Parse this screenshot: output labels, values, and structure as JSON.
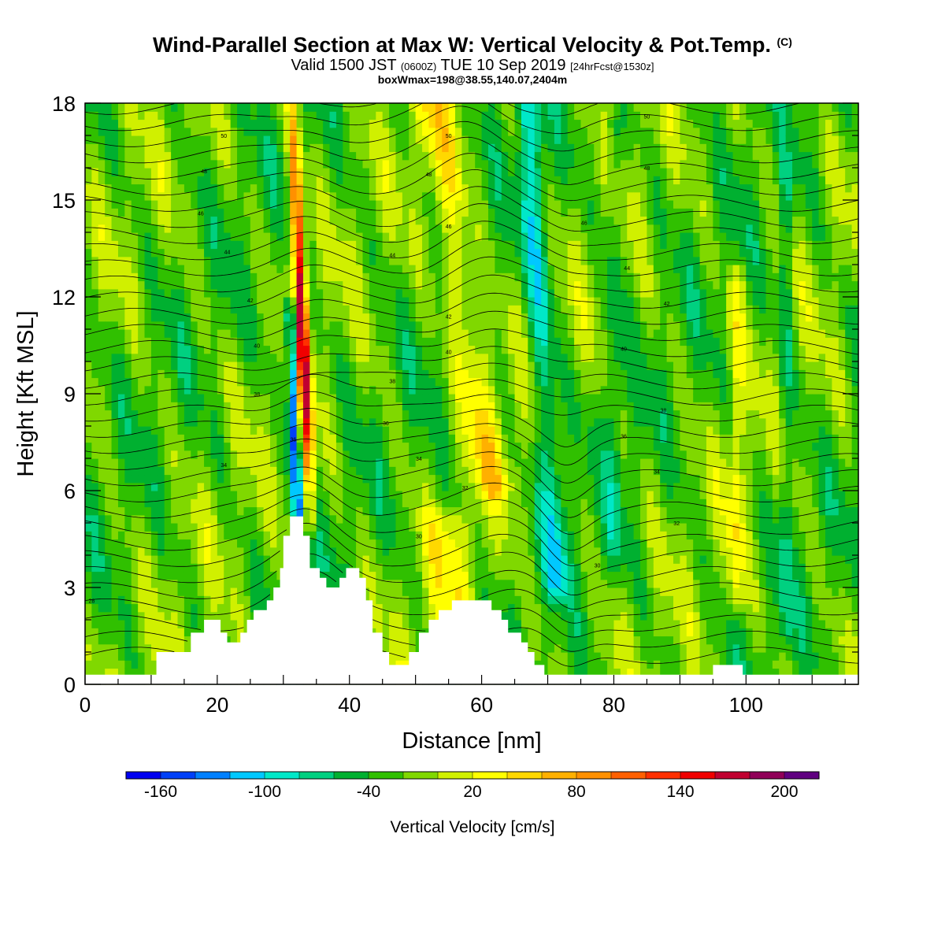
{
  "header": {
    "title": "Wind-Parallel Section at Max W: Vertical Velocity & Pot.Temp.",
    "copyright": "(C)",
    "valid_prefix": "Valid 1500 JST",
    "valid_utc": "(0600Z)",
    "valid_date": "TUE 10 Sep 2019",
    "forecast": "[24hrFcst@1530z]",
    "box_info": "boxWmax=198@38.55,140.07,2404m"
  },
  "chart_data": {
    "type": "heatmap",
    "xlabel": "Distance [nm]",
    "ylabel": "Height [Kft MSL]",
    "xlim": [
      0,
      117
    ],
    "ylim": [
      0,
      18
    ],
    "x_ticks": [
      0,
      20,
      40,
      60,
      80,
      100
    ],
    "y_ticks": [
      0,
      3,
      6,
      9,
      12,
      15,
      18
    ],
    "colorbar": {
      "label": "Vertical Velocity [cm/s]",
      "tick_labels": [
        "-160",
        "-100",
        "-40",
        "20",
        "80",
        "140",
        "200"
      ],
      "colors": [
        "#0000f0",
        "#0040f8",
        "#0080ff",
        "#00c8ff",
        "#00e8c8",
        "#00d080",
        "#00b030",
        "#30c000",
        "#80d800",
        "#d0f000",
        "#ffff00",
        "#ffd800",
        "#ffb000",
        "#ff9000",
        "#ff6000",
        "#ff3000",
        "#f00000",
        "#c00030",
        "#900058",
        "#600080"
      ],
      "boundaries": [
        -180,
        -160,
        -140,
        -120,
        -100,
        -80,
        -60,
        -40,
        -20,
        0,
        20,
        40,
        60,
        80,
        100,
        120,
        140,
        160,
        180,
        200,
        220
      ]
    },
    "terrain_kft": [
      [
        0,
        0.3
      ],
      [
        10.8,
        0.3
      ],
      [
        10.8,
        1
      ],
      [
        16,
        1
      ],
      [
        16,
        1.6
      ],
      [
        18,
        1.6
      ],
      [
        18,
        2
      ],
      [
        20.5,
        2
      ],
      [
        20.5,
        1.6
      ],
      [
        21.5,
        1.6
      ],
      [
        21.5,
        1.3
      ],
      [
        23.5,
        1.3
      ],
      [
        23.5,
        1.6
      ],
      [
        24.5,
        1.6
      ],
      [
        24.5,
        2
      ],
      [
        25.5,
        2
      ],
      [
        25.5,
        2.3
      ],
      [
        27.5,
        2.3
      ],
      [
        27.5,
        2.6
      ],
      [
        28.5,
        2.6
      ],
      [
        28.5,
        3
      ],
      [
        29.5,
        3
      ],
      [
        29.5,
        3.6
      ],
      [
        30,
        3.6
      ],
      [
        30,
        4.6
      ],
      [
        31,
        4.6
      ],
      [
        31,
        5.2
      ],
      [
        33,
        5.2
      ],
      [
        33,
        4.6
      ],
      [
        34,
        4.6
      ],
      [
        34,
        3.6
      ],
      [
        35.5,
        3.6
      ],
      [
        35.5,
        3.3
      ],
      [
        36.5,
        3.3
      ],
      [
        36.5,
        3
      ],
      [
        38.5,
        3
      ],
      [
        38.5,
        3.3
      ],
      [
        39.5,
        3.3
      ],
      [
        39.5,
        3.6
      ],
      [
        41.5,
        3.6
      ],
      [
        41.5,
        3.3
      ],
      [
        42.5,
        3.3
      ],
      [
        42.5,
        2.6
      ],
      [
        43.5,
        2.6
      ],
      [
        43.5,
        1.6
      ],
      [
        45,
        1.6
      ],
      [
        45,
        1
      ],
      [
        46,
        1
      ],
      [
        46,
        0.6
      ],
      [
        49,
        0.6
      ],
      [
        49,
        1
      ],
      [
        50.5,
        1
      ],
      [
        50.5,
        1.6
      ],
      [
        52,
        1.6
      ],
      [
        52,
        2
      ],
      [
        53.5,
        2
      ],
      [
        53.5,
        2.3
      ],
      [
        55.5,
        2.3
      ],
      [
        55.5,
        2.6
      ],
      [
        61.5,
        2.6
      ],
      [
        61.5,
        2.3
      ],
      [
        63,
        2.3
      ],
      [
        63,
        2
      ],
      [
        64,
        2
      ],
      [
        64,
        1.6
      ],
      [
        66,
        1.6
      ],
      [
        66,
        1.3
      ],
      [
        67,
        1.3
      ],
      [
        67,
        1
      ],
      [
        68,
        1
      ],
      [
        68,
        0.6
      ],
      [
        69.5,
        0.6
      ],
      [
        69.5,
        0.3
      ],
      [
        95,
        0.3
      ],
      [
        95,
        0.6
      ],
      [
        99.5,
        0.6
      ],
      [
        99.5,
        0.3
      ],
      [
        117,
        0.3
      ]
    ],
    "vv_features": [
      {
        "x": 34.2,
        "y0": 5.0,
        "y1": 18,
        "tilt": -0.22,
        "width": 0.9,
        "peak": 198
      },
      {
        "x": 32.2,
        "y0": 5.0,
        "y1": 11.5,
        "tilt": -0.18,
        "width": 0.7,
        "peak": -130
      },
      {
        "x": 62.0,
        "y0": 6.0,
        "y1": 18,
        "tilt": -0.8,
        "width": 2.8,
        "peak": 55
      },
      {
        "x": 71.5,
        "y0": 3.0,
        "y1": 18,
        "tilt": -0.3,
        "width": 1.8,
        "peak": -65
      },
      {
        "x": 55.0,
        "y0": 2.0,
        "y1": 5.0,
        "tilt": 0.0,
        "width": 4.0,
        "peak": 35
      },
      {
        "x": 98.5,
        "y0": 2.5,
        "y1": 12.5,
        "tilt": 0.0,
        "width": 1.2,
        "peak": 40
      },
      {
        "x": 106.0,
        "y0": 1.5,
        "y1": 16.0,
        "tilt": 0.0,
        "width": 1.0,
        "peak": -35
      },
      {
        "x": 80.0,
        "y0": 4.0,
        "y1": 17.0,
        "tilt": 0.0,
        "width": 1.2,
        "peak": -30
      }
    ],
    "theta_labels": [
      {
        "text": "28",
        "x": 1,
        "y": 2.6
      },
      {
        "text": "30",
        "x": 50.5,
        "y": 4.6
      },
      {
        "text": "30",
        "x": 77.5,
        "y": 3.7
      },
      {
        "text": "32",
        "x": 57.5,
        "y": 6.1
      },
      {
        "text": "32",
        "x": 89.5,
        "y": 5.0
      },
      {
        "text": "34",
        "x": 21,
        "y": 6.8
      },
      {
        "text": "34",
        "x": 50.5,
        "y": 7.0
      },
      {
        "text": "34",
        "x": 86.5,
        "y": 6.6
      },
      {
        "text": "36",
        "x": 31.5,
        "y": 7.6
      },
      {
        "text": "36",
        "x": 45.5,
        "y": 8.1
      },
      {
        "text": "36",
        "x": 81.5,
        "y": 7.7
      },
      {
        "text": "38",
        "x": 26,
        "y": 9.0
      },
      {
        "text": "38",
        "x": 46.5,
        "y": 9.4
      },
      {
        "text": "38",
        "x": 87.5,
        "y": 8.5
      },
      {
        "text": "40",
        "x": 26,
        "y": 10.5
      },
      {
        "text": "40",
        "x": 55,
        "y": 10.3
      },
      {
        "text": "40",
        "x": 81.5,
        "y": 10.4
      },
      {
        "text": "42",
        "x": 25,
        "y": 11.9
      },
      {
        "text": "42",
        "x": 55,
        "y": 11.4
      },
      {
        "text": "42",
        "x": 88,
        "y": 11.8
      },
      {
        "text": "44",
        "x": 21.5,
        "y": 13.4
      },
      {
        "text": "44",
        "x": 46.5,
        "y": 13.3
      },
      {
        "text": "44",
        "x": 82,
        "y": 12.9
      },
      {
        "text": "46",
        "x": 17.5,
        "y": 14.6
      },
      {
        "text": "46",
        "x": 55,
        "y": 14.2
      },
      {
        "text": "46",
        "x": 75.5,
        "y": 14.3
      },
      {
        "text": "48",
        "x": 18,
        "y": 15.9
      },
      {
        "text": "48",
        "x": 52,
        "y": 15.8
      },
      {
        "text": "48",
        "x": 85,
        "y": 16.0
      },
      {
        "text": "50",
        "x": 21,
        "y": 17.0
      },
      {
        "text": "50",
        "x": 55,
        "y": 17.0
      },
      {
        "text": "50",
        "x": 85,
        "y": 17.6
      }
    ]
  }
}
